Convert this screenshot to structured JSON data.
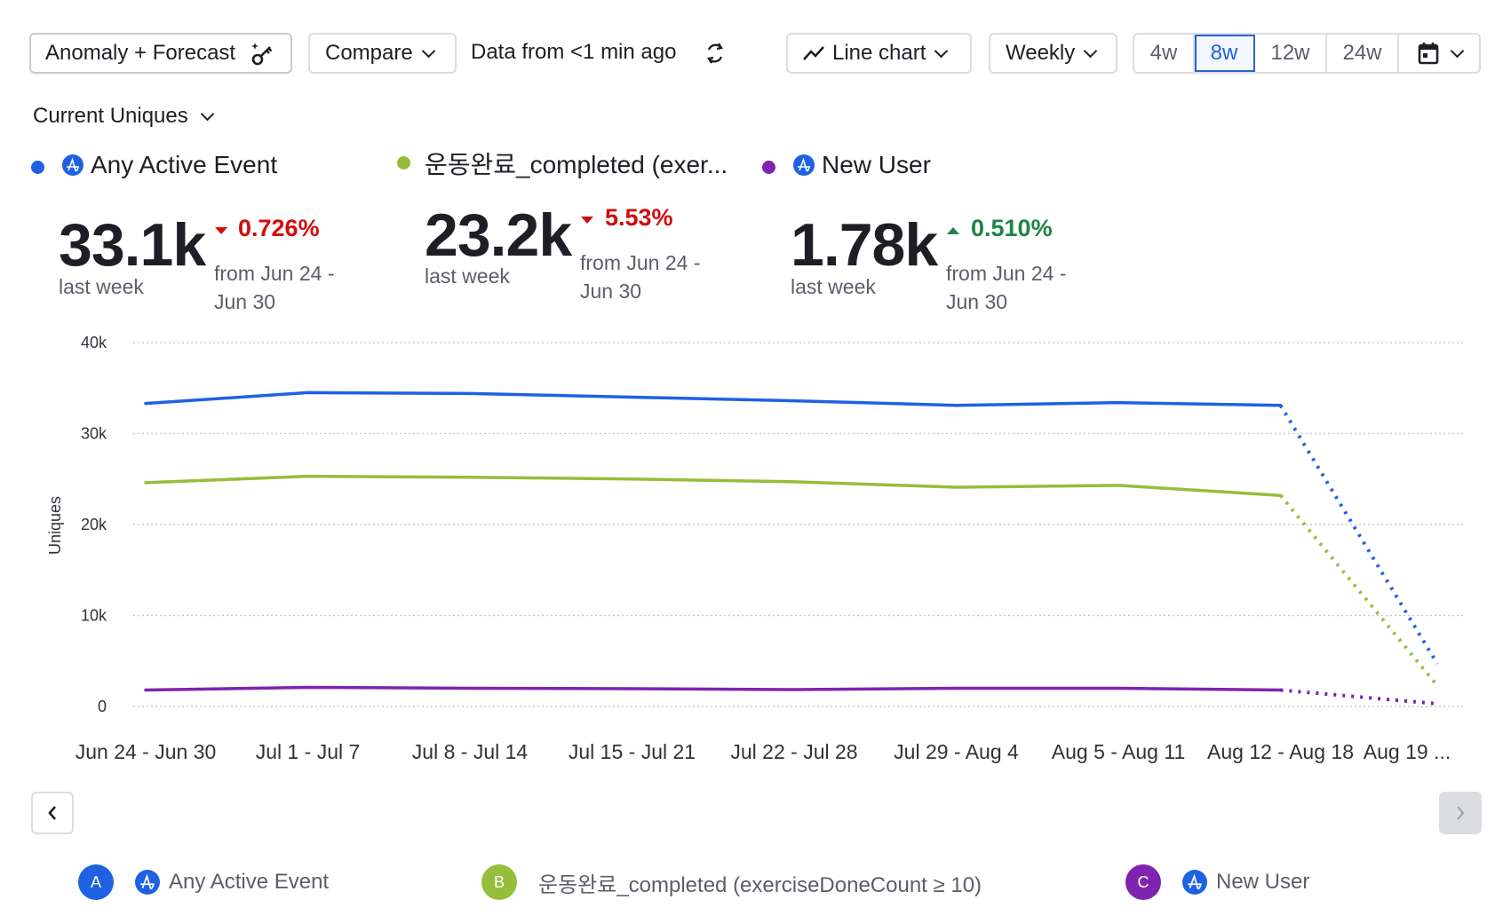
{
  "toolbar": {
    "anomaly_label": "Anomaly + Forecast",
    "compare_label": "Compare",
    "data_freshness": "Data from <1 min ago",
    "chart_type_label": "Line chart",
    "interval_label": "Weekly",
    "ranges": [
      "4w",
      "8w",
      "12w",
      "24w"
    ],
    "active_range": "8w"
  },
  "metric_selector": {
    "label": "Current Uniques"
  },
  "series_summary": [
    {
      "name": "Any Active Event",
      "color": "#1e61e3",
      "has_amp_icon": true,
      "value": "33.1k",
      "sub": "last week",
      "change": "0.726%",
      "direction": "down",
      "change_color": "#d10c0c",
      "from": "from Jun 24 - Jun 30"
    },
    {
      "name": "운동완료_completed (exer...",
      "color": "#96bd3b",
      "has_amp_icon": false,
      "value": "23.2k",
      "sub": "last week",
      "change": "5.53%",
      "direction": "down",
      "change_color": "#d10c0c",
      "from": "from Jun 24 - Jun 30"
    },
    {
      "name": "New User",
      "color": "#7e24b0",
      "has_amp_icon": true,
      "value": "1.78k",
      "sub": "last week",
      "change": "0.510%",
      "direction": "up",
      "change_color": "#1f8347",
      "from": "from Jun 24 - Jun 30"
    }
  ],
  "chart_data": {
    "type": "line",
    "title": "",
    "xlabel": "",
    "ylabel": "Uniques",
    "ylim": [
      0,
      40000
    ],
    "yticks": [
      0,
      10000,
      20000,
      30000,
      40000
    ],
    "ytick_labels": [
      "0",
      "10k",
      "20k",
      "30k",
      "40k"
    ],
    "grid": true,
    "categories": [
      "Jun 24 - Jun 30",
      "Jul 1 - Jul 7",
      "Jul 8 - Jul 14",
      "Jul 15 - Jul 21",
      "Jul 22 - Jul 28",
      "Jul 29 - Aug 4",
      "Aug 5 - Aug 11",
      "Aug 12 - Aug 18",
      "Aug 19 ..."
    ],
    "series": [
      {
        "name": "Any Active Event",
        "color": "#1e61e3",
        "values": [
          33300,
          34500,
          34400,
          34000,
          33600,
          33100,
          33400,
          33100
        ],
        "forecast_value": 4700
      },
      {
        "name": "운동완료_completed (exerciseDoneCount ≥ 10)",
        "color": "#96bd3b",
        "values": [
          24600,
          25300,
          25200,
          25000,
          24700,
          24100,
          24300,
          23200
        ],
        "forecast_value": 2300
      },
      {
        "name": "New User",
        "color": "#7e24b0",
        "values": [
          1800,
          2100,
          2000,
          1950,
          1850,
          2000,
          2000,
          1800
        ],
        "forecast_value": 300
      }
    ],
    "forecast_style": "dotted"
  },
  "bottom_legend": [
    {
      "badge": "A",
      "color": "#1e61e3",
      "label": "Any Active Event",
      "has_amp_icon": true
    },
    {
      "badge": "B",
      "color": "#96bd3b",
      "label": "운동완료_completed (exerciseDoneCount ≥ 10)",
      "has_amp_icon": false
    },
    {
      "badge": "C",
      "color": "#7e24b0",
      "label": "New User",
      "has_amp_icon": true
    }
  ]
}
